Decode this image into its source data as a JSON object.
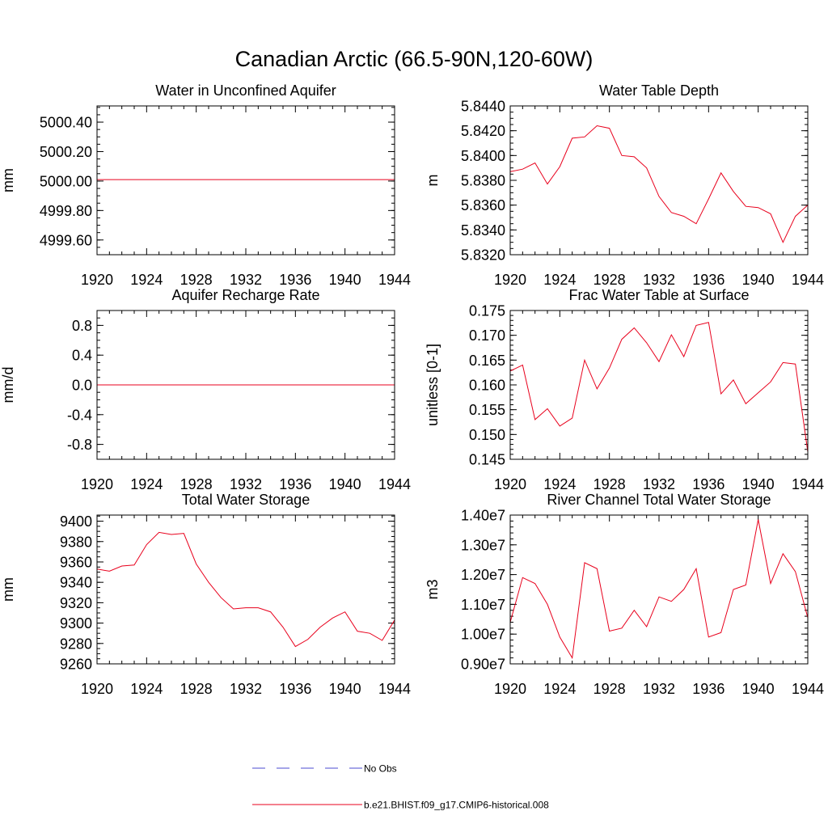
{
  "title": "Canadian Arctic (66.5-90N,120-60W)",
  "legend": {
    "entries": [
      {
        "label": "No Obs",
        "color": "#4b4bd0",
        "dash": true
      },
      {
        "label": "b.e21.BHIST.f09_g17.CMIP6-historical.008",
        "color": "#e8001c",
        "dash": false
      }
    ]
  },
  "chart_data": [
    {
      "type": "line",
      "title": "Water in Unconfined Aquifer",
      "ylabel": "mm",
      "xlim": [
        1920,
        1944
      ],
      "xticks": [
        "1920",
        "1924",
        "1928",
        "1932",
        "1936",
        "1940",
        "1944"
      ],
      "ylim": [
        4999.5,
        5000.51
      ],
      "yticks": [
        4999.6,
        4999.8,
        5000.0,
        5000.2,
        5000.4
      ],
      "ytick_labels": [
        "4999.60",
        "4999.80",
        "5000.00",
        "5000.20",
        "5000.40"
      ],
      "yminor": 0.05,
      "x": [
        1920,
        1921,
        1922,
        1923,
        1924,
        1925,
        1926,
        1927,
        1928,
        1929,
        1930,
        1931,
        1932,
        1933,
        1934,
        1935,
        1936,
        1937,
        1938,
        1939,
        1940,
        1941,
        1942,
        1943,
        1944
      ],
      "y": [
        5000.01,
        5000.01,
        5000.01,
        5000.01,
        5000.01,
        5000.01,
        5000.01,
        5000.01,
        5000.01,
        5000.01,
        5000.01,
        5000.01,
        5000.01,
        5000.01,
        5000.01,
        5000.01,
        5000.01,
        5000.01,
        5000.01,
        5000.01,
        5000.01,
        5000.01,
        5000.01,
        5000.01,
        5000.01
      ]
    },
    {
      "type": "line",
      "title": "Water Table Depth",
      "ylabel": "m",
      "xlim": [
        1920,
        1944
      ],
      "xticks": [
        "1920",
        "1924",
        "1928",
        "1932",
        "1936",
        "1940",
        "1944"
      ],
      "ylim": [
        5.832,
        5.844
      ],
      "yticks": [
        5.832,
        5.834,
        5.836,
        5.838,
        5.84,
        5.842,
        5.844
      ],
      "ytick_labels": [
        "5.8320",
        "5.8340",
        "5.8360",
        "5.8380",
        "5.8400",
        "5.8420",
        "5.8440"
      ],
      "yminor": 0.0005,
      "x": [
        1920,
        1921,
        1922,
        1923,
        1924,
        1925,
        1926,
        1927,
        1928,
        1929,
        1930,
        1931,
        1932,
        1933,
        1934,
        1935,
        1936,
        1937,
        1938,
        1939,
        1940,
        1941,
        1942,
        1943,
        1944
      ],
      "y": [
        5.8387,
        5.8389,
        5.8394,
        5.8377,
        5.8391,
        5.8414,
        5.8415,
        5.8424,
        5.8422,
        5.84,
        5.8399,
        5.839,
        5.8367,
        5.8354,
        5.8351,
        5.8345,
        5.8365,
        5.8386,
        5.8371,
        5.8359,
        5.8358,
        5.8353,
        5.833,
        5.8351,
        5.836
      ]
    },
    {
      "type": "line",
      "title": "Aquifer Recharge Rate",
      "ylabel": "mm/d",
      "xlim": [
        1920,
        1944
      ],
      "xticks": [
        "1920",
        "1924",
        "1928",
        "1932",
        "1936",
        "1940",
        "1944"
      ],
      "ylim": [
        -1.0,
        1.0
      ],
      "yticks": [
        -0.8,
        -0.4,
        0.0,
        0.4,
        0.8
      ],
      "ytick_labels": [
        "-0.8",
        "-0.4",
        "0.0",
        "0.4",
        "0.8"
      ],
      "yminor": 0.1,
      "x": [
        1920,
        1921,
        1922,
        1923,
        1924,
        1925,
        1926,
        1927,
        1928,
        1929,
        1930,
        1931,
        1932,
        1933,
        1934,
        1935,
        1936,
        1937,
        1938,
        1939,
        1940,
        1941,
        1942,
        1943,
        1944
      ],
      "y": [
        0,
        0,
        0,
        0,
        0,
        0,
        0,
        0,
        0,
        0,
        0,
        0,
        0,
        0,
        0,
        0,
        0,
        0,
        0,
        0,
        0,
        0,
        0,
        0,
        0
      ]
    },
    {
      "type": "line",
      "title": "Frac Water Table at Surface",
      "ylabel": "unitless [0-1]",
      "xlim": [
        1920,
        1944
      ],
      "xticks": [
        "1920",
        "1924",
        "1928",
        "1932",
        "1936",
        "1940",
        "1944"
      ],
      "ylim": [
        0.145,
        0.175
      ],
      "yticks": [
        0.145,
        0.15,
        0.155,
        0.16,
        0.165,
        0.17,
        0.175
      ],
      "ytick_labels": [
        "0.145",
        "0.150",
        "0.155",
        "0.160",
        "0.165",
        "0.170",
        "0.175"
      ],
      "yminor": 0.001,
      "x": [
        1920,
        1921,
        1922,
        1923,
        1924,
        1925,
        1926,
        1927,
        1928,
        1929,
        1930,
        1931,
        1932,
        1933,
        1934,
        1935,
        1936,
        1937,
        1938,
        1939,
        1940,
        1941,
        1942,
        1943,
        1944
      ],
      "y": [
        0.1628,
        0.164,
        0.153,
        0.1552,
        0.1517,
        0.1533,
        0.165,
        0.1592,
        0.1634,
        0.1692,
        0.1715,
        0.1685,
        0.1647,
        0.1701,
        0.1657,
        0.172,
        0.1726,
        0.1582,
        0.161,
        0.1562,
        0.1584,
        0.1606,
        0.1645,
        0.1642,
        0.1465
      ]
    },
    {
      "type": "line",
      "title": "Total Water Storage",
      "ylabel": "mm",
      "xlim": [
        1920,
        1944
      ],
      "xticks": [
        "1920",
        "1924",
        "1928",
        "1932",
        "1936",
        "1940",
        "1944"
      ],
      "ylim": [
        9260,
        9406
      ],
      "yticks": [
        9260,
        9280,
        9300,
        9320,
        9340,
        9360,
        9380,
        9400
      ],
      "ytick_labels": [
        "9260",
        "9280",
        "9300",
        "9320",
        "9340",
        "9360",
        "9380",
        "9400"
      ],
      "yminor": 5,
      "x": [
        1920,
        1921,
        1922,
        1923,
        1924,
        1925,
        1926,
        1927,
        1928,
        1929,
        1930,
        1931,
        1932,
        1933,
        1934,
        1935,
        1936,
        1937,
        1938,
        1939,
        1940,
        1941,
        1942,
        1943,
        1944
      ],
      "y": [
        9353,
        9351,
        9356,
        9357,
        9377,
        9389,
        9387,
        9388,
        9358,
        9340,
        9325,
        9314,
        9315,
        9315,
        9311,
        9296,
        9277,
        9284,
        9296,
        9305,
        9311,
        9292,
        9290,
        9283,
        9303
      ]
    },
    {
      "type": "line",
      "title": "River Channel Total Water Storage",
      "ylabel": "m3",
      "xlim": [
        1920,
        1944
      ],
      "xticks": [
        "1920",
        "1924",
        "1928",
        "1932",
        "1936",
        "1940",
        "1944"
      ],
      "ylim": [
        9000000.0,
        14000000.0
      ],
      "yticks": [
        9000000.0,
        10000000.0,
        11000000.0,
        12000000.0,
        13000000.0,
        14000000.0
      ],
      "ytick_labels": [
        "0.90e7",
        "1.00e7",
        "1.10e7",
        "1.20e7",
        "1.30e7",
        "1.40e7"
      ],
      "yminor": 200000.0,
      "x": [
        1920,
        1921,
        1922,
        1923,
        1924,
        1925,
        1926,
        1927,
        1928,
        1929,
        1930,
        1931,
        1932,
        1933,
        1934,
        1935,
        1936,
        1937,
        1938,
        1939,
        1940,
        1941,
        1942,
        1943,
        1944
      ],
      "y": [
        10400000,
        11900000,
        11700000,
        11000000,
        9900000,
        9200000,
        12400000,
        12200000,
        10100000,
        10200000,
        10800000,
        10250000,
        11250000,
        11100000,
        11500000,
        12200000,
        9900000,
        10050000,
        11500000,
        11650000,
        13850000,
        11700000,
        12700000,
        12100000,
        10550000
      ]
    }
  ]
}
